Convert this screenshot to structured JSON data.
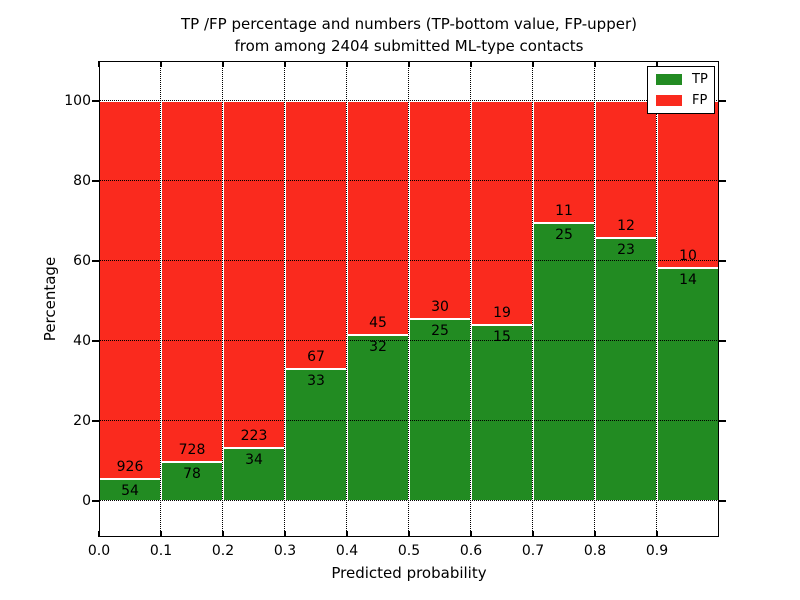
{
  "figure": {
    "title_line1": "TP /FP percentage and numbers (TP-bottom value, FP-upper)",
    "title_line2": "from among 2404 submitted ML-type contacts"
  },
  "chart_data": {
    "type": "bar",
    "stacked": true,
    "normalized_to_percent": 100,
    "title": "TP /FP percentage and numbers (TP-bottom value, FP-upper) from among 2404 submitted ML-type contacts",
    "xlabel": "Predicted probability",
    "ylabel": "Percentage",
    "total_contacts": 2404,
    "bin_width": 0.1,
    "bin_starts": [
      0.0,
      0.1,
      0.2,
      0.3,
      0.4,
      0.5,
      0.6,
      0.7,
      0.8,
      0.9
    ],
    "xtick_labels": [
      "0.0",
      "0.1",
      "0.2",
      "0.3",
      "0.4",
      "0.5",
      "0.6",
      "0.7",
      "0.8",
      "0.9"
    ],
    "ytick_values": [
      0,
      20,
      40,
      60,
      80,
      100
    ],
    "xlim": [
      0.0,
      1.0
    ],
    "ylim": [
      -9,
      110
    ],
    "grid": "dotted black, drawn over bars",
    "series": [
      {
        "name": "TP",
        "color": "#228b22",
        "counts": [
          54,
          78,
          34,
          33,
          32,
          25,
          15,
          25,
          23,
          14
        ]
      },
      {
        "name": "FP",
        "color": "#fa2a1e",
        "counts": [
          926,
          728,
          223,
          67,
          45,
          30,
          19,
          11,
          12,
          10
        ]
      }
    ],
    "legend": {
      "position": "upper right",
      "entries": [
        {
          "label": "TP",
          "color": "#228b22"
        },
        {
          "label": "FP",
          "color": "#fa2a1e"
        }
      ]
    }
  }
}
